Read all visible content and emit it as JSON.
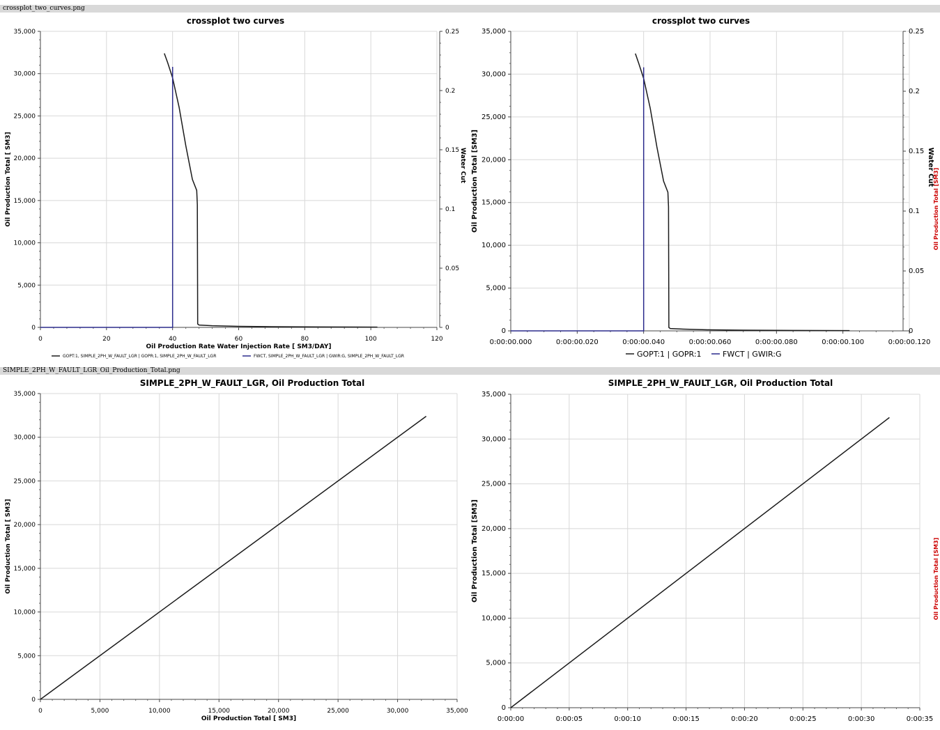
{
  "file_labels": {
    "top": "crossplot_two_curves.png",
    "bottom": "SIMPLE_2PH_W_FAULT_LGR_Oil_Production_Total.png"
  },
  "chart_data": [
    {
      "type": "line",
      "title": "crossplot two curves",
      "xlabel": "Oil Production Rate Water Injection Rate [ SM3/DAY]",
      "ylabel": "Oil Production Total [  SM3]",
      "y2label": "Water Cut",
      "xlim": [
        0,
        120
      ],
      "ylim": [
        0,
        35000
      ],
      "y2lim": [
        0,
        0.25
      ],
      "xticks": [
        0,
        20,
        40,
        60,
        80,
        100,
        120
      ],
      "xtick_labels": [
        "0",
        "20",
        "40",
        "60",
        "80",
        "100",
        "120"
      ],
      "yticks": [
        0,
        5000,
        10000,
        15000,
        20000,
        25000,
        30000,
        35000
      ],
      "ytick_labels": [
        "0",
        "5,000",
        "10,000",
        "15,000",
        "20,000",
        "25,000",
        "30,000",
        "35,000"
      ],
      "y2ticks": [
        0,
        0.05,
        0.1,
        0.15,
        0.2,
        0.25
      ],
      "y2tick_labels": [
        "0",
        "0.05",
        "0.1",
        "0.15",
        "0.2",
        "0.25"
      ],
      "grid": true,
      "legend_position": "bottom",
      "series": [
        {
          "name": "GOPT:1, SIMPLE_2PH_W_FAULT_LGR | GOPR:1, SIMPLE_2PH_W_FAULT_LGR",
          "color": "#1a1a1a",
          "axis": "y",
          "x": [
            37.5,
            38.5,
            40,
            42,
            44,
            46,
            47.3,
            47.5,
            47.6,
            48,
            52,
            60,
            70,
            85,
            102
          ],
          "y": [
            32400,
            31300,
            29500,
            26000,
            21500,
            17500,
            16200,
            14500,
            400,
            280,
            200,
            120,
            80,
            50,
            30
          ]
        },
        {
          "name": "FWCT, SIMPLE_2PH_W_FAULT_LGR | GWIR:G, SIMPLE_2PH_W_FAULT_LGR",
          "color": "#2b2b8c",
          "axis": "y2",
          "x": [
            0,
            40,
            40
          ],
          "y": [
            0,
            0,
            0.22
          ]
        }
      ]
    },
    {
      "type": "line",
      "title": "crossplot two curves",
      "ylabel": "Oil Production Total [SM3]",
      "y2label": "Water Cut",
      "y2label_extra": "Oil Production Total [SM3]",
      "xlim": [
        0,
        0.12
      ],
      "ylim": [
        0,
        35000
      ],
      "y2lim": [
        0,
        0.25
      ],
      "xticks": [
        0,
        0.02,
        0.04,
        0.06,
        0.08,
        0.1,
        0.12
      ],
      "xtick_labels": [
        "0:00:00.000",
        "0:00:00.020",
        "0:00:00.040",
        "0:00:00.060",
        "0:00:00.080",
        "0:00:00.100",
        "0:00:00.120"
      ],
      "yticks": [
        0,
        5000,
        10000,
        15000,
        20000,
        25000,
        30000,
        35000
      ],
      "ytick_labels": [
        "0",
        "5,000",
        "10,000",
        "15,000",
        "20,000",
        "25,000",
        "30,000",
        "35,000"
      ],
      "y2ticks": [
        0,
        0.05,
        0.1,
        0.15,
        0.2,
        0.25
      ],
      "y2tick_labels": [
        "0",
        "0.05",
        "0.1",
        "0.15",
        "0.2",
        "0.25"
      ],
      "grid": true,
      "legend_position": "bottom",
      "series": [
        {
          "name": "GOPT:1 | GOPR:1",
          "color": "#1a1a1a",
          "axis": "y",
          "x": [
            0.0375,
            0.0385,
            0.04,
            0.042,
            0.044,
            0.046,
            0.0473,
            0.0475,
            0.0476,
            0.048,
            0.052,
            0.06,
            0.07,
            0.085,
            0.102
          ],
          "y": [
            32400,
            31300,
            29500,
            26000,
            21500,
            17500,
            16200,
            14500,
            400,
            280,
            200,
            120,
            80,
            50,
            30
          ]
        },
        {
          "name": "FWCT | GWIR:G",
          "color": "#2b2b8c",
          "axis": "y2",
          "x": [
            0,
            0.04,
            0.04
          ],
          "y": [
            0,
            0,
            0.22
          ]
        }
      ]
    },
    {
      "type": "line",
      "title": "SIMPLE_2PH_W_FAULT_LGR, Oil Production Total",
      "xlabel": "Oil Production Total [   SM3]",
      "ylabel": "Oil Production Total [  SM3]",
      "xlim": [
        0,
        35000
      ],
      "ylim": [
        0,
        35000
      ],
      "xticks": [
        0,
        5000,
        10000,
        15000,
        20000,
        25000,
        30000,
        35000
      ],
      "xtick_labels": [
        "0",
        "5,000",
        "10,000",
        "15,000",
        "20,000",
        "25,000",
        "30,000",
        "35,000"
      ],
      "yticks": [
        0,
        5000,
        10000,
        15000,
        20000,
        25000,
        30000,
        35000
      ],
      "ytick_labels": [
        "0",
        "5,000",
        "10,000",
        "15,000",
        "20,000",
        "25,000",
        "30,000",
        "35,000"
      ],
      "grid": true,
      "series": [
        {
          "color": "#1a1a1a",
          "axis": "y",
          "x": [
            0,
            32400
          ],
          "y": [
            0,
            32400
          ]
        }
      ]
    },
    {
      "type": "line",
      "title": "SIMPLE_2PH_W_FAULT_LGR, Oil Production Total",
      "ylabel": "Oil Production Total [SM3]",
      "y2label_extra": "Oil Production Total [SM3]",
      "xlim": [
        0,
        35
      ],
      "ylim": [
        0,
        35000
      ],
      "xticks": [
        0,
        5,
        10,
        15,
        20,
        25,
        30,
        35
      ],
      "xtick_labels": [
        "0:00:00",
        "0:00:05",
        "0:00:10",
        "0:00:15",
        "0:00:20",
        "0:00:25",
        "0:00:30",
        "0:00:35"
      ],
      "yticks": [
        0,
        5000,
        10000,
        15000,
        20000,
        25000,
        30000,
        35000
      ],
      "ytick_labels": [
        "0",
        "5,000",
        "10,000",
        "15,000",
        "20,000",
        "25,000",
        "30,000",
        "35,000"
      ],
      "grid": true,
      "series": [
        {
          "color": "#1a1a1a",
          "axis": "y",
          "x": [
            0,
            32.4
          ],
          "y": [
            0,
            32400
          ]
        }
      ]
    }
  ],
  "legends": {
    "tl": [
      "GOPT:1, SIMPLE_2PH_W_FAULT_LGR | GOPR:1, SIMPLE_2PH_W_FAULT_LGR",
      "FWCT, SIMPLE_2PH_W_FAULT_LGR | GWIR:G, SIMPLE_2PH_W_FAULT_LGR"
    ],
    "tr": [
      "GOPT:1 | GOPR:1",
      "FWCT | GWIR:G"
    ]
  }
}
